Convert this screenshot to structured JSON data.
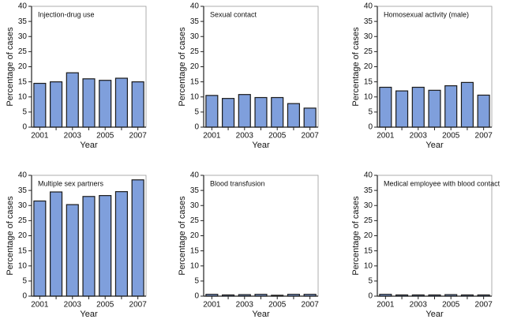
{
  "chart_data": [
    {
      "type": "bar",
      "title": "Injection-drug use",
      "xlabel": "Year",
      "ylabel": "Percentage of cases",
      "categories": [
        "2001",
        null,
        "2003",
        null,
        "2005",
        null,
        "2007"
      ],
      "values": [
        14.5,
        15,
        18,
        16,
        15.5,
        16.2,
        15
      ],
      "color": "#7f9fdc",
      "ylim": [
        0,
        40
      ],
      "yticks": [
        0,
        5,
        10,
        15,
        20,
        25,
        30,
        35,
        40
      ]
    },
    {
      "type": "bar",
      "title": "Sexual contact",
      "xlabel": "Year",
      "ylabel": "Percentage of cases",
      "categories": [
        "2001",
        null,
        "2003",
        null,
        "2005",
        null,
        "2007"
      ],
      "values": [
        10.5,
        9.5,
        10.8,
        9.8,
        9.8,
        7.8,
        6.3
      ],
      "color": "#7f9fdc",
      "ylim": [
        0,
        40
      ],
      "yticks": [
        0,
        5,
        10,
        15,
        20,
        25,
        30,
        35,
        40
      ]
    },
    {
      "type": "bar",
      "title": "Homosexual activity (male)",
      "xlabel": "Year",
      "ylabel": "Percentage of cases",
      "categories": [
        "2001",
        null,
        "2003",
        null,
        "2005",
        null,
        "2007"
      ],
      "values": [
        13.2,
        12,
        13.2,
        12.2,
        13.7,
        14.8,
        10.6
      ],
      "color": "#7f9fdc",
      "ylim": [
        0,
        40
      ],
      "yticks": [
        0,
        5,
        10,
        15,
        20,
        25,
        30,
        35,
        40
      ]
    },
    {
      "type": "bar",
      "title": "Multiple sex partners",
      "xlabel": "Year",
      "ylabel": "Percentage of cases",
      "categories": [
        "2001",
        null,
        "2003",
        null,
        "2005",
        null,
        "2007"
      ],
      "values": [
        31.5,
        34.5,
        30.3,
        33,
        33.3,
        34.6,
        38.5
      ],
      "color": "#7f9fdc",
      "ylim": [
        0,
        40
      ],
      "yticks": [
        0,
        5,
        10,
        15,
        20,
        25,
        30,
        35,
        40
      ]
    },
    {
      "type": "bar",
      "title": "Blood transfusion",
      "xlabel": "Year",
      "ylabel": "Percentage of cases",
      "categories": [
        "2001",
        null,
        "2003",
        null,
        "2005",
        null,
        "2007"
      ],
      "values": [
        0.6,
        0.4,
        0.5,
        0.6,
        0.3,
        0.6,
        0.6
      ],
      "color": "#7f9fdc",
      "ylim": [
        0,
        40
      ],
      "yticks": [
        0,
        5,
        10,
        15,
        20,
        25,
        30,
        35,
        40
      ]
    },
    {
      "type": "bar",
      "title": "Medical employee with blood contact",
      "xlabel": "Year",
      "ylabel": "Percentage of cases",
      "categories": [
        "2001",
        null,
        "2003",
        null,
        "2005",
        null,
        "2007"
      ],
      "values": [
        0.6,
        0.4,
        0.4,
        0.4,
        0.5,
        0.4,
        0.4
      ],
      "color": "#7f9fdc",
      "ylim": [
        0,
        40
      ],
      "yticks": [
        0,
        5,
        10,
        15,
        20,
        25,
        30,
        35,
        40
      ]
    }
  ]
}
